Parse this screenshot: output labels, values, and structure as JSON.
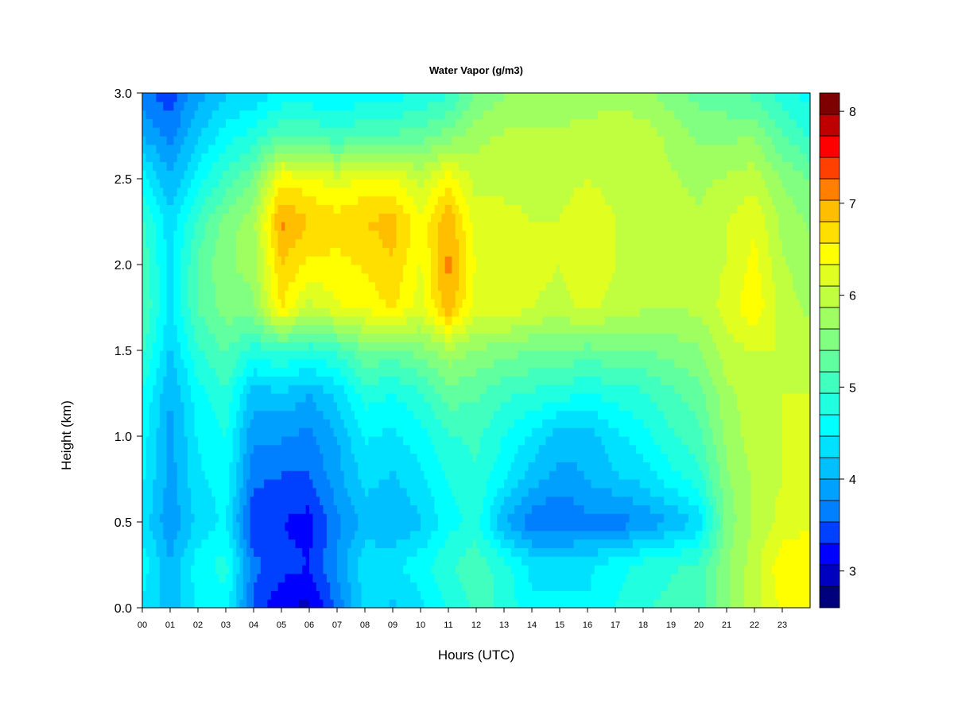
{
  "chart_data": {
    "type": "heatmap",
    "title": "Water Vapor (g/m3)",
    "xlabel": "Hours (UTC)",
    "ylabel": "Height (km)",
    "xlim": [
      0,
      24
    ],
    "ylim": [
      0.0,
      3.0
    ],
    "x_ticks": [
      "00",
      "01",
      "02",
      "03",
      "04",
      "05",
      "06",
      "07",
      "08",
      "09",
      "10",
      "11",
      "12",
      "13",
      "14",
      "15",
      "16",
      "17",
      "18",
      "19",
      "20",
      "21",
      "22",
      "23"
    ],
    "y_ticks": [
      "0.0",
      "0.5",
      "1.0",
      "1.5",
      "2.0",
      "2.5",
      "3.0"
    ],
    "colorbar": {
      "min": 2.6,
      "max": 8.2,
      "levels": 24,
      "tick_values": [
        3,
        4,
        5,
        6,
        7,
        8
      ],
      "tick_labels": [
        "3",
        "4",
        "5",
        "6",
        "7",
        "8"
      ],
      "colors": [
        "#00007f",
        "#0000bf",
        "#0000ff",
        "#0040ff",
        "#0080ff",
        "#00a0ff",
        "#00c0ff",
        "#00e0ff",
        "#00ffff",
        "#20ffdf",
        "#40ffbf",
        "#60ff9f",
        "#80ff80",
        "#a0ff60",
        "#c0ff40",
        "#e0ff20",
        "#ffff00",
        "#ffdf00",
        "#ffbf00",
        "#ff8000",
        "#ff4000",
        "#ff0000",
        "#bf0000",
        "#7f0000"
      ]
    },
    "height_km": [
      0.0,
      0.25,
      0.5,
      0.75,
      1.0,
      1.25,
      1.5,
      1.75,
      2.0,
      2.25,
      2.5,
      2.75,
      3.0
    ],
    "hours": [
      0,
      1,
      2,
      3,
      4,
      5,
      6,
      7,
      8,
      9,
      10,
      11,
      12,
      13,
      14,
      15,
      16,
      17,
      18,
      19,
      20,
      21,
      22,
      23,
      24
    ],
    "values": [
      [
        4.4,
        4.1,
        4.5,
        4.6,
        3.5,
        3.1,
        3.0,
        3.6,
        4.3,
        4.2,
        4.4,
        4.7,
        5.0,
        4.9,
        4.5,
        4.5,
        4.5,
        4.7,
        4.9,
        5.0,
        5.0,
        5.6,
        6.0,
        6.4,
        6.5
      ],
      [
        4.6,
        4.0,
        4.6,
        4.8,
        3.6,
        3.4,
        3.3,
        3.8,
        4.4,
        4.4,
        4.6,
        4.9,
        5.1,
        4.8,
        4.4,
        4.4,
        4.4,
        4.6,
        4.8,
        4.9,
        5.0,
        5.6,
        6.0,
        6.5,
        6.5
      ],
      [
        4.4,
        3.8,
        4.3,
        4.5,
        3.3,
        3.3,
        3.2,
        3.7,
        4.1,
        4.0,
        4.2,
        4.6,
        4.8,
        4.0,
        3.6,
        3.5,
        3.7,
        3.6,
        3.8,
        4.0,
        4.3,
        5.5,
        5.9,
        6.2,
        6.3
      ],
      [
        4.5,
        3.9,
        4.4,
        4.6,
        3.6,
        3.5,
        3.5,
        3.9,
        4.3,
        4.2,
        4.4,
        4.7,
        4.9,
        4.5,
        4.1,
        3.9,
        4.0,
        4.2,
        4.3,
        4.6,
        4.8,
        5.6,
        5.9,
        6.1,
        6.1
      ],
      [
        4.6,
        3.9,
        4.5,
        4.7,
        3.8,
        3.8,
        3.7,
        4.0,
        4.5,
        4.4,
        4.6,
        4.9,
        5.0,
        4.7,
        4.4,
        4.1,
        4.1,
        4.4,
        4.6,
        4.9,
        5.1,
        5.7,
        6.0,
        6.1,
        6.2
      ],
      [
        4.7,
        4.0,
        4.6,
        4.9,
        4.1,
        4.2,
        4.0,
        4.3,
        4.8,
        4.7,
        4.9,
        5.3,
        5.2,
        5.0,
        4.9,
        4.8,
        4.7,
        4.8,
        4.9,
        5.1,
        5.3,
        5.8,
        6.0,
        6.1,
        6.1
      ],
      [
        5.0,
        4.2,
        4.9,
        5.2,
        4.8,
        5.0,
        4.8,
        5.0,
        5.4,
        5.3,
        5.5,
        5.8,
        5.6,
        5.5,
        5.4,
        5.4,
        5.3,
        5.4,
        5.4,
        5.5,
        5.6,
        6.0,
        6.1,
        6.1,
        6.0
      ],
      [
        5.2,
        4.4,
        5.2,
        5.5,
        5.6,
        6.6,
        6.0,
        6.3,
        6.4,
        6.6,
        6.2,
        7.0,
        6.2,
        6.3,
        6.1,
        6.0,
        6.2,
        6.0,
        5.9,
        5.9,
        5.9,
        6.2,
        6.5,
        6.0,
        5.8
      ],
      [
        5.1,
        4.4,
        5.2,
        5.6,
        5.7,
        6.8,
        6.5,
        6.5,
        6.6,
        6.8,
        6.3,
        7.1,
        6.3,
        6.3,
        6.2,
        6.1,
        6.3,
        6.1,
        6.0,
        6.0,
        6.0,
        6.1,
        6.4,
        5.9,
        5.7
      ],
      [
        5.0,
        4.3,
        5.0,
        5.5,
        5.8,
        7.1,
        6.8,
        6.7,
        6.8,
        6.9,
        6.4,
        7.0,
        6.2,
        6.2,
        6.1,
        6.1,
        6.3,
        6.1,
        6.0,
        6.0,
        5.9,
        6.1,
        6.3,
        5.8,
        5.6
      ],
      [
        4.6,
        4.0,
        4.6,
        5.0,
        5.4,
        6.5,
        6.4,
        6.2,
        6.4,
        6.4,
        6.0,
        6.5,
        6.0,
        6.0,
        6.0,
        6.0,
        6.1,
        6.0,
        6.0,
        5.9,
        5.8,
        5.9,
        6.0,
        5.6,
        5.4
      ],
      [
        4.0,
        3.7,
        4.2,
        4.6,
        4.8,
        5.2,
        5.2,
        5.0,
        5.2,
        5.2,
        5.3,
        5.5,
        5.8,
        5.9,
        5.9,
        5.9,
        6.0,
        6.0,
        6.0,
        5.8,
        5.6,
        5.6,
        5.6,
        5.2,
        4.9
      ],
      [
        3.6,
        3.4,
        3.9,
        4.2,
        4.3,
        4.5,
        4.5,
        4.4,
        4.6,
        4.6,
        4.7,
        4.9,
        5.4,
        5.6,
        5.7,
        5.7,
        5.7,
        5.8,
        5.7,
        5.5,
        5.3,
        5.2,
        5.1,
        4.8,
        4.6
      ]
    ]
  }
}
